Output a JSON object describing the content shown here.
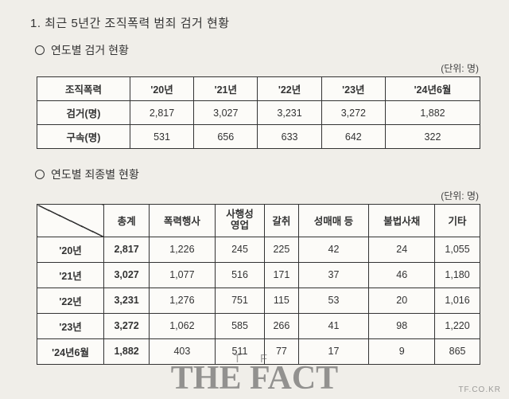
{
  "title": "1. 최근 5년간 조직폭력 범죄 검거 현황",
  "section1": {
    "heading": "연도별 검거 현황",
    "unit": "(단위: 명)",
    "table": {
      "headers": [
        "조직폭력",
        "'20년",
        "'21년",
        "'22년",
        "'23년",
        "'24년6월"
      ],
      "rows": [
        [
          "검거(명)",
          "2,817",
          "3,027",
          "3,231",
          "3,272",
          "1,882"
        ],
        [
          "구속(명)",
          "531",
          "656",
          "633",
          "642",
          "322"
        ]
      ]
    }
  },
  "section2": {
    "heading": "연도별 죄종별 현황",
    "unit": "(단위: 명)",
    "table": {
      "headers": [
        "",
        "총계",
        "폭력행사",
        "사행성\n영업",
        "갈취",
        "성매매 등",
        "불법사채",
        "기타"
      ],
      "rows": [
        [
          "'20년",
          "2,817",
          "1,226",
          "245",
          "225",
          "42",
          "24",
          "1,055"
        ],
        [
          "'21년",
          "3,027",
          "1,077",
          "516",
          "171",
          "37",
          "46",
          "1,180"
        ],
        [
          "'22년",
          "3,231",
          "1,276",
          "751",
          "115",
          "53",
          "20",
          "1,016"
        ],
        [
          "'23년",
          "3,272",
          "1,062",
          "585",
          "266",
          "41",
          "98",
          "1,220"
        ],
        [
          "'24년6월",
          "1,882",
          "403",
          "511",
          "77",
          "17",
          "9",
          "865"
        ]
      ]
    }
  },
  "watermark": {
    "tf": "T F",
    "thefact": "THE FACT",
    "corner": "TF.CO.KR"
  }
}
